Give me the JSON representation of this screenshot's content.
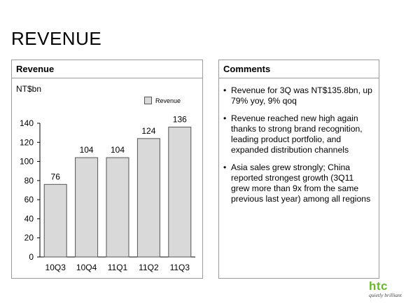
{
  "slide": {
    "title": "REVENUE"
  },
  "chart_panel": {
    "header": "Revenue",
    "unit_label": "NT$bn"
  },
  "chart_data": {
    "type": "bar",
    "categories": [
      "10Q3",
      "10Q4",
      "11Q1",
      "11Q2",
      "11Q3"
    ],
    "series": [
      {
        "name": "Revenue",
        "values": [
          76,
          104,
          104,
          124,
          136
        ]
      }
    ],
    "ylabel": "NT$bn",
    "ylim": [
      0,
      140
    ],
    "yticks": [
      0,
      20,
      40,
      60,
      80,
      100,
      120,
      140
    ],
    "data_labels": [
      "76",
      "104",
      "104",
      "124",
      "136"
    ],
    "grid": false,
    "legend": "top-right",
    "bar_color": "#d9d9d9",
    "bar_edge_color": "#555555"
  },
  "comments_panel": {
    "header": "Comments",
    "items": [
      "Revenue for 3Q was NT$135.8bn, up 79% yoy, 9% qoq",
      "Revenue reached new high again thanks to strong brand recognition, leading product portfolio, and expanded distribution channels",
      "Asia sales grew strongly; China reported strongest growth (3Q11 grew more than 9x from the same previous last year) among all regions"
    ]
  },
  "logo": {
    "word": "htc",
    "tagline": "quietly brilliant",
    "color": "#6bb52f"
  }
}
